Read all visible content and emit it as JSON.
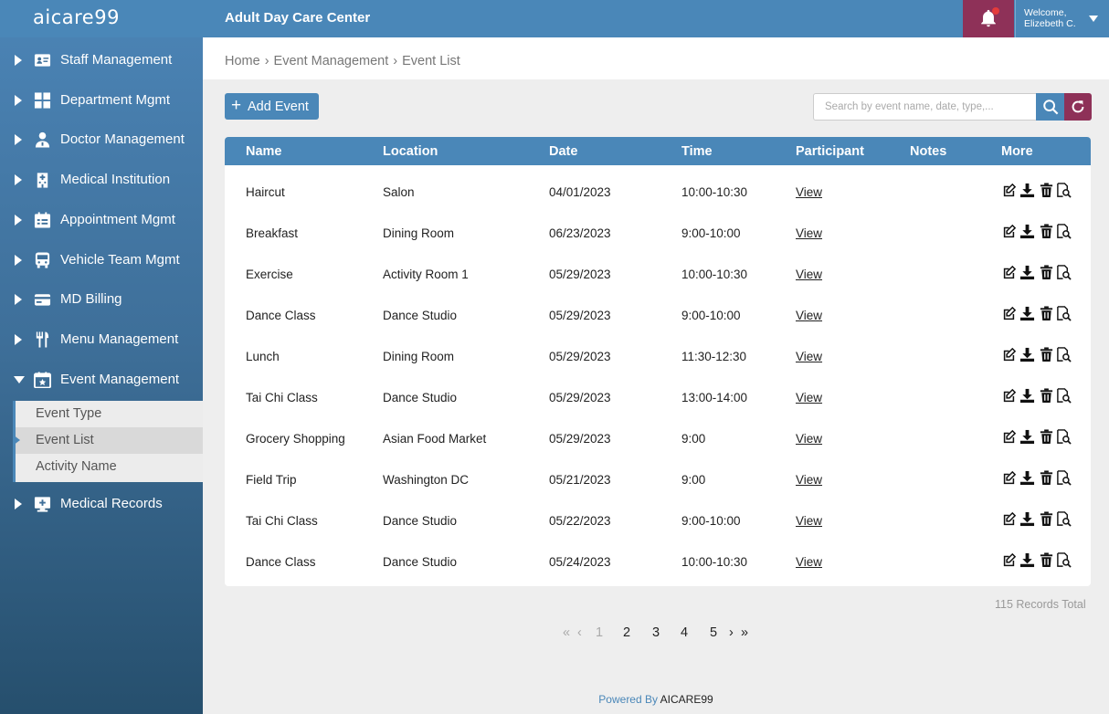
{
  "brand": {
    "logo_text": "aicare99"
  },
  "header": {
    "title": "Adult Day Care Center",
    "welcome_line1": "Welcome,",
    "welcome_line2": "Elizebeth C.",
    "accent": "#4a87b8",
    "alert_color": "#8e3158"
  },
  "sidebar": {
    "items": [
      {
        "label": "Staff Management",
        "icon": "id-card-icon"
      },
      {
        "label": "Department Mgmt",
        "icon": "grid-icon"
      },
      {
        "label": "Doctor Management",
        "icon": "doctor-icon"
      },
      {
        "label": "Medical Institution",
        "icon": "hospital-icon"
      },
      {
        "label": "Appointment Mgmt",
        "icon": "calendar-list-icon"
      },
      {
        "label": "Vehicle Team Mgmt",
        "icon": "bus-icon"
      },
      {
        "label": "MD Billing",
        "icon": "credit-card-icon"
      },
      {
        "label": "Menu Management",
        "icon": "utensils-icon"
      },
      {
        "label": "Event Management",
        "icon": "calendar-star-icon"
      },
      {
        "label": "Medical Records",
        "icon": "medical-monitor-icon"
      }
    ],
    "submenu": [
      {
        "label": "Event Type"
      },
      {
        "label": "Event List"
      },
      {
        "label": "Activity Name"
      }
    ]
  },
  "breadcrumb": [
    "Home",
    "Event Management",
    "Event List"
  ],
  "toolbar": {
    "add_label": "Add Event",
    "search_placeholder": "Search by event name, date, type,..."
  },
  "table": {
    "columns": [
      "Name",
      "Location",
      "Date",
      "Time",
      "Participant",
      "Notes",
      "More"
    ],
    "rows": [
      {
        "name": "Haircut",
        "location": "Salon",
        "date": "04/01/2023",
        "time": "10:00-10:30",
        "participant": "View"
      },
      {
        "name": "Breakfast",
        "location": "Dining Room",
        "date": "06/23/2023",
        "time": "9:00-10:00",
        "participant": "View"
      },
      {
        "name": "Exercise",
        "location": "Activity Room 1",
        "date": "05/29/2023",
        "time": "10:00-10:30",
        "participant": "View"
      },
      {
        "name": "Dance Class",
        "location": "Dance Studio",
        "date": "05/29/2023",
        "time": "9:00-10:00",
        "participant": "View"
      },
      {
        "name": "Lunch",
        "location": "Dining Room",
        "date": "05/29/2023",
        "time": "11:30-12:30",
        "participant": "View"
      },
      {
        "name": "Tai Chi Class",
        "location": "Dance Studio",
        "date": "05/29/2023",
        "time": "13:00-14:00",
        "participant": "View"
      },
      {
        "name": "Grocery Shopping",
        "location": "Asian Food Market",
        "date": "05/29/2023",
        "time": "9:00",
        "participant": "View"
      },
      {
        "name": "Field Trip",
        "location": "Washington DC",
        "date": "05/21/2023",
        "time": "9:00",
        "participant": "View"
      },
      {
        "name": "Tai Chi Class",
        "location": "Dance Studio",
        "date": "05/22/2023",
        "time": "9:00-10:00",
        "participant": "View"
      },
      {
        "name": "Dance Class",
        "location": "Dance Studio",
        "date": "05/24/2023",
        "time": "10:00-10:30",
        "participant": "View"
      }
    ]
  },
  "records_total": "115 Records Total",
  "pagination": {
    "pages": [
      "1",
      "2",
      "3",
      "4",
      "5"
    ],
    "current": "1"
  },
  "footer": {
    "prefix": "Powered By",
    "brand": "AICARE99"
  }
}
